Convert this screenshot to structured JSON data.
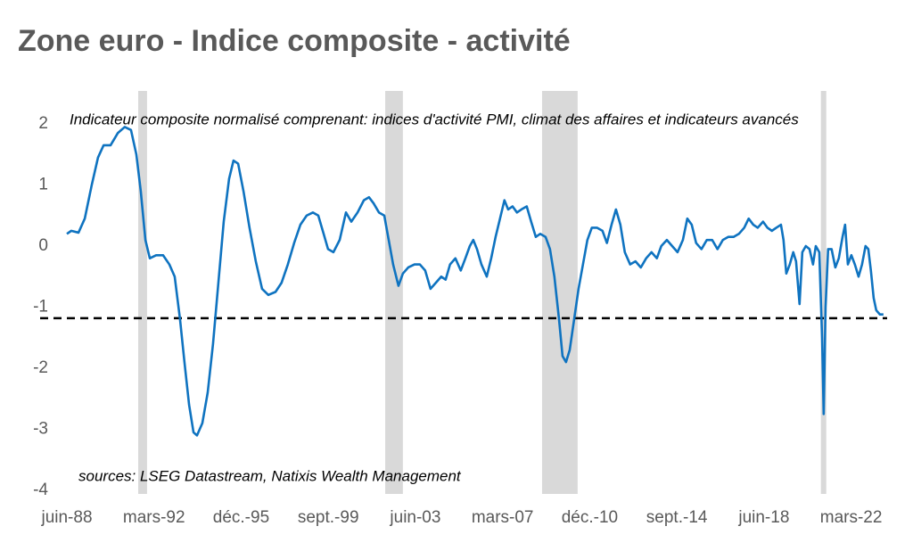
{
  "chart_data": {
    "type": "line",
    "title": "Zone euro - Indice composite - activité",
    "subtitle": "Indicateur composite normalisé comprenant: indices d'activité PMI, climat des affaires et indicateurs avancés",
    "annotation": "sources: LSEG Datastream, Natixis Wealth Management",
    "color": "#0f73c0",
    "x": [
      1988.42,
      1988.61,
      1988.92,
      1989.19,
      1989.49,
      1989.76,
      1990.0,
      1990.3,
      1990.61,
      1990.91,
      1991.18,
      1991.41,
      1991.6,
      1991.8,
      1991.99,
      1992.26,
      1992.56,
      1992.83,
      1993.06,
      1993.29,
      1993.48,
      1993.68,
      1993.87,
      1994.02,
      1994.25,
      1994.48,
      1994.71,
      1994.94,
      1995.17,
      1995.4,
      1995.59,
      1995.79,
      1996.02,
      1996.28,
      1996.55,
      1996.82,
      1997.09,
      1997.4,
      1997.66,
      1997.93,
      1998.2,
      1998.47,
      1998.74,
      1999.01,
      1999.24,
      1999.47,
      1999.66,
      1999.89,
      2000.16,
      2000.43,
      2000.66,
      2000.93,
      2001.2,
      2001.42,
      2001.62,
      2001.85,
      2002.08,
      2002.27,
      2002.46,
      2002.69,
      2002.88,
      2003.11,
      2003.38,
      2003.61,
      2003.84,
      2004.07,
      2004.3,
      2004.53,
      2004.72,
      2004.91,
      2005.14,
      2005.37,
      2005.57,
      2005.76,
      2005.91,
      2006.07,
      2006.26,
      2006.49,
      2006.68,
      2006.87,
      2007.06,
      2007.25,
      2007.41,
      2007.6,
      2007.79,
      2007.98,
      2008.21,
      2008.4,
      2008.6,
      2008.79,
      2009.02,
      2009.21,
      2009.4,
      2009.6,
      2009.75,
      2009.9,
      2010.06,
      2010.25,
      2010.44,
      2010.63,
      2010.82,
      2011.01,
      2011.24,
      2011.47,
      2011.66,
      2011.86,
      2012.05,
      2012.24,
      2012.43,
      2012.66,
      2012.89,
      2013.12,
      2013.35,
      2013.58,
      2013.81,
      2014.0,
      2014.24,
      2014.47,
      2014.7,
      2014.93,
      2015.12,
      2015.31,
      2015.5,
      2015.73,
      2015.96,
      2016.19,
      2016.42,
      2016.65,
      2016.88,
      2017.11,
      2017.34,
      2017.57,
      2017.76,
      2017.96,
      2018.15,
      2018.38,
      2018.57,
      2018.76,
      2018.95,
      2019.15,
      2019.26,
      2019.38,
      2019.53,
      2019.68,
      2019.8,
      2019.95,
      2020.07,
      2020.22,
      2020.38,
      2020.53,
      2020.65,
      2020.8,
      2020.92,
      2020.99,
      2021.07,
      2021.18,
      2021.33,
      2021.49,
      2021.64,
      2021.8,
      2021.91,
      2022.03,
      2022.18,
      2022.33,
      2022.49,
      2022.64,
      2022.79,
      2022.91,
      2023.02,
      2023.14,
      2023.25,
      2023.41,
      2023.56
    ],
    "values": [
      0.2,
      0.25,
      0.22,
      0.45,
      1.0,
      1.45,
      1.65,
      1.65,
      1.85,
      1.95,
      1.9,
      1.5,
      0.9,
      0.1,
      -0.2,
      -0.15,
      -0.15,
      -0.3,
      -0.5,
      -1.2,
      -1.9,
      -2.6,
      -3.05,
      -3.1,
      -2.9,
      -2.4,
      -1.6,
      -0.6,
      0.4,
      1.1,
      1.4,
      1.35,
      0.9,
      0.3,
      -0.25,
      -0.7,
      -0.8,
      -0.75,
      -0.6,
      -0.3,
      0.05,
      0.35,
      0.5,
      0.55,
      0.5,
      0.2,
      -0.05,
      -0.1,
      0.1,
      0.55,
      0.4,
      0.55,
      0.75,
      0.8,
      0.7,
      0.55,
      0.5,
      0.1,
      -0.3,
      -0.65,
      -0.45,
      -0.35,
      -0.3,
      -0.3,
      -0.4,
      -0.7,
      -0.6,
      -0.5,
      -0.55,
      -0.3,
      -0.2,
      -0.4,
      -0.2,
      0.0,
      0.1,
      -0.05,
      -0.3,
      -0.5,
      -0.2,
      0.15,
      0.45,
      0.75,
      0.6,
      0.65,
      0.55,
      0.6,
      0.65,
      0.4,
      0.15,
      0.2,
      0.15,
      -0.05,
      -0.5,
      -1.2,
      -1.8,
      -1.9,
      -1.7,
      -1.2,
      -0.7,
      -0.3,
      0.1,
      0.3,
      0.3,
      0.25,
      0.05,
      0.35,
      0.6,
      0.35,
      -0.1,
      -0.3,
      -0.25,
      -0.35,
      -0.2,
      -0.1,
      -0.2,
      0.0,
      0.1,
      0.0,
      -0.1,
      0.1,
      0.45,
      0.35,
      0.05,
      -0.05,
      0.1,
      0.1,
      -0.05,
      0.1,
      0.15,
      0.15,
      0.2,
      0.3,
      0.45,
      0.35,
      0.3,
      0.4,
      0.3,
      0.25,
      0.3,
      0.35,
      0.1,
      -0.45,
      -0.3,
      -0.1,
      -0.25,
      -0.95,
      -0.1,
      0.0,
      -0.05,
      -0.3,
      0.0,
      -0.1,
      -1.5,
      -2.75,
      -1.0,
      -0.05,
      -0.05,
      -0.35,
      -0.2,
      0.15,
      0.35,
      -0.3,
      -0.15,
      -0.3,
      -0.5,
      -0.3,
      0.0,
      -0.05,
      -0.4,
      -0.85,
      -1.05,
      -1.12,
      -1.12
    ],
    "reference_line": -1.18,
    "shaded_periods": [
      [
        1991.49,
        1991.87
      ],
      [
        2002.12,
        2002.88
      ],
      [
        2008.87,
        2010.4
      ],
      [
        2020.87,
        2021.1
      ]
    ],
    "xlim": [
      1988.42,
      2023.72
    ],
    "xticks": [
      {
        "value": 1988.42,
        "label": "juin-88"
      },
      {
        "value": 1992.17,
        "label": "mars-92"
      },
      {
        "value": 1995.92,
        "label": "déc.-95"
      },
      {
        "value": 1999.67,
        "label": "sept.-99"
      },
      {
        "value": 2003.42,
        "label": "juin-03"
      },
      {
        "value": 2007.17,
        "label": "mars-07"
      },
      {
        "value": 2010.92,
        "label": "déc.-10"
      },
      {
        "value": 2014.67,
        "label": "sept.-14"
      },
      {
        "value": 2018.42,
        "label": "juin-18"
      },
      {
        "value": 2022.17,
        "label": "mars-22"
      }
    ],
    "ylim": [
      -4,
      2
    ],
    "yticks": [
      -4,
      -3,
      -2,
      -1,
      0,
      1,
      2
    ],
    "grid": false
  }
}
